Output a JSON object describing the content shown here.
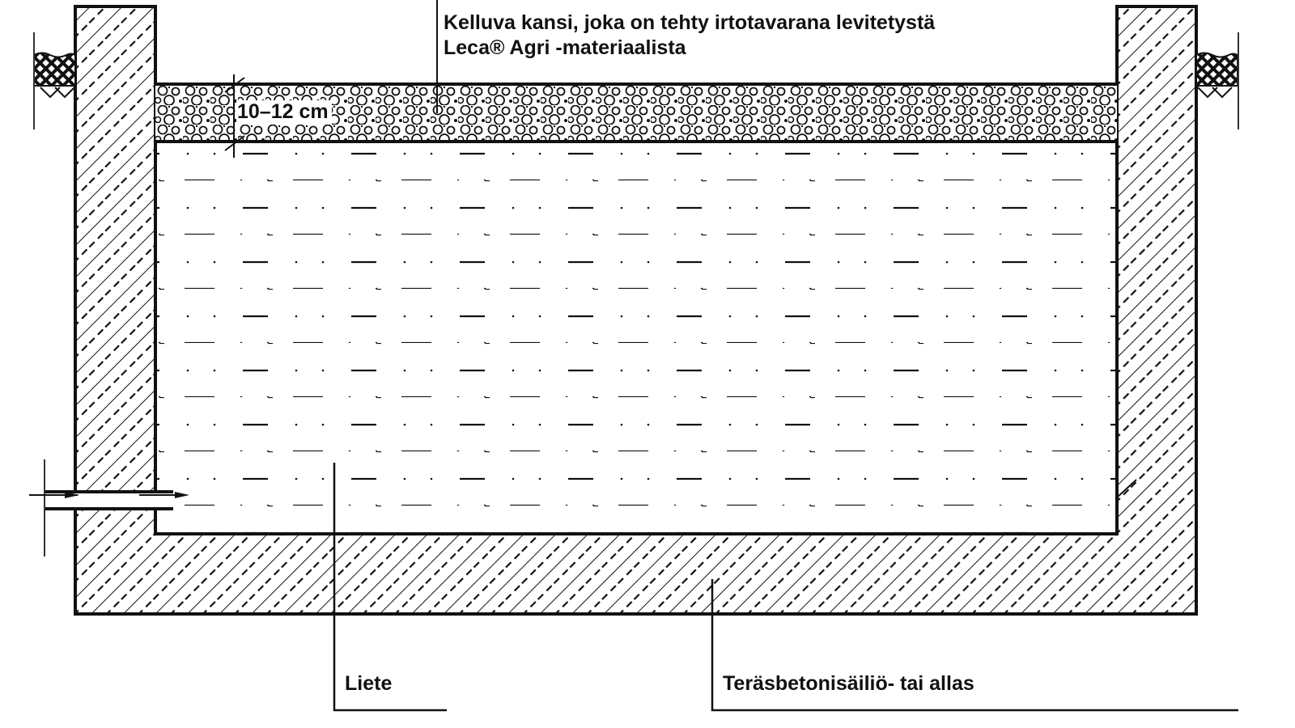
{
  "labels": {
    "cover_line1": "Kelluva kansi, joka on tehty irtotavarana levitetystä",
    "cover_line2": "Leca® Agri -materiaalista",
    "thickness": "10–12 cm",
    "sludge": "Liete",
    "tank": "Teräsbetonisäiliö- tai allas"
  },
  "colors": {
    "ink": "#111111",
    "background": "#ffffff"
  }
}
